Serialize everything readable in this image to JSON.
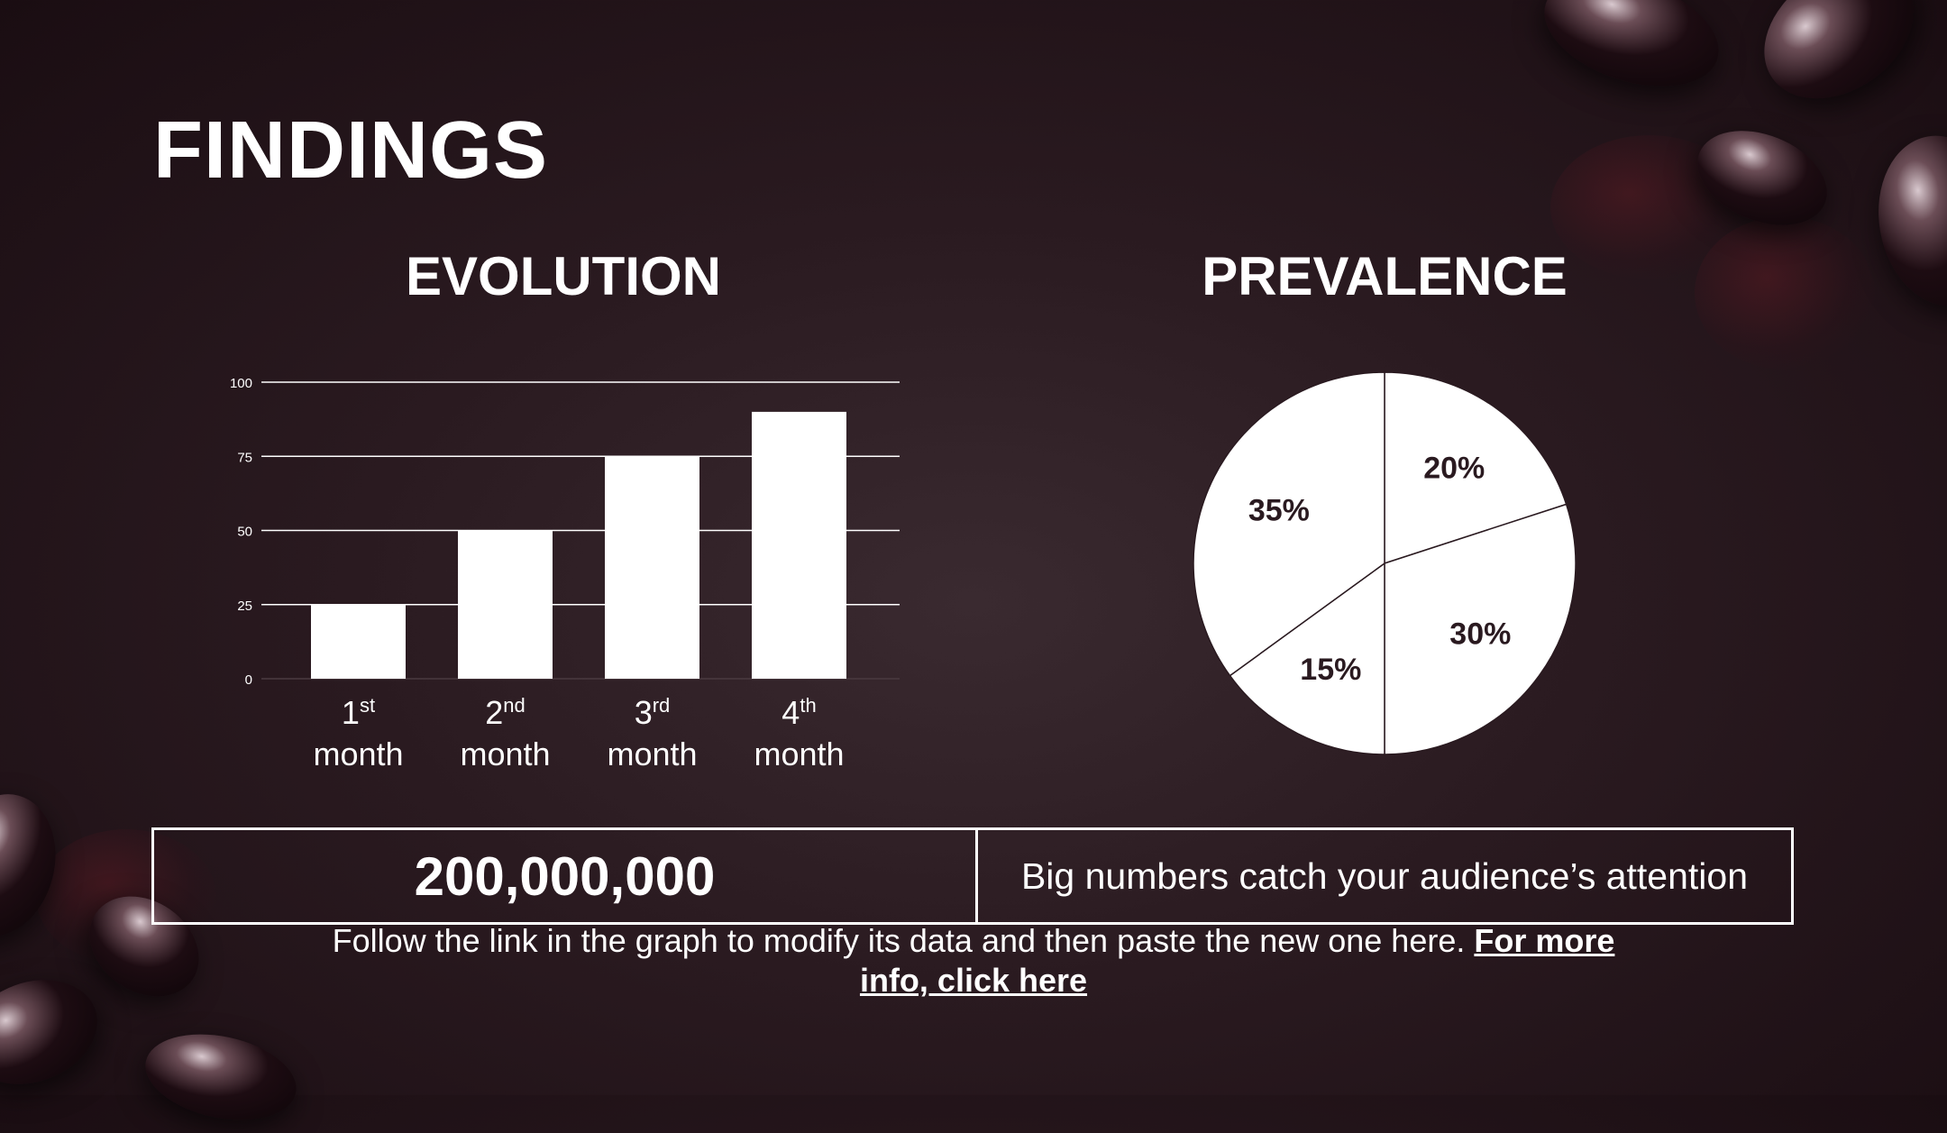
{
  "slide": {
    "title": "FINDINGS",
    "stat_value": "200,000,000",
    "stat_text": "Big numbers catch your audience’s attention",
    "note_text": "Follow the link in the graph to modify its data and then paste the new one here. ",
    "note_link": "For more info, click here"
  },
  "chart_data": [
    {
      "type": "bar",
      "title": "EVOLUTION",
      "categories": [
        {
          "num": "1",
          "sup": "st",
          "word": "month"
        },
        {
          "num": "2",
          "sup": "nd",
          "word": "month"
        },
        {
          "num": "3",
          "sup": "rd",
          "word": "month"
        },
        {
          "num": "4",
          "sup": "th",
          "word": "month"
        }
      ],
      "values": [
        25,
        50,
        75,
        90
      ],
      "yticks": [
        0,
        25,
        50,
        75,
        100
      ],
      "ylim": [
        0,
        100
      ],
      "grid": true,
      "bar_color": "#ffffff"
    },
    {
      "type": "pie",
      "title": "PREVALENCE",
      "slices": [
        {
          "label": "20%",
          "value": 20
        },
        {
          "label": "30%",
          "value": 30
        },
        {
          "label": "15%",
          "value": 15
        },
        {
          "label": "35%",
          "value": 35
        }
      ],
      "fill": "#ffffff",
      "stroke": "#2a1a20"
    }
  ]
}
